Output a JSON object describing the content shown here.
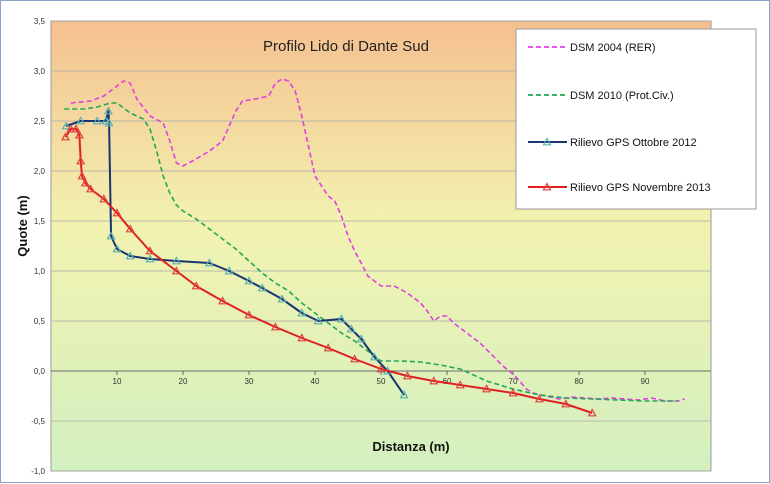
{
  "chart_data": {
    "type": "line",
    "title": "Profilo Lido di Dante Sud",
    "xlabel": "Distanza (m)",
    "ylabel": "Quote (m)",
    "xlim": [
      0,
      100
    ],
    "ylim": [
      -1.0,
      3.5
    ],
    "x_ticks": [
      10,
      20,
      30,
      40,
      50,
      60,
      70,
      80,
      90
    ],
    "y_ticks": [
      -1.0,
      -0.5,
      0.0,
      0.5,
      1.0,
      1.5,
      2.0,
      2.5,
      3.0,
      3.5
    ],
    "y_tick_labels": [
      "-1,0",
      "-0,5",
      "0,0",
      "0,5",
      "1,0",
      "1,5",
      "2,0",
      "2,5",
      "3,0",
      "3,5"
    ],
    "grid": true,
    "legend_position": "top-right",
    "background_bands": {
      "top": "#f5c08f",
      "middle": "#f2f2b0",
      "bottom": "#d3f0c0"
    },
    "series": [
      {
        "name": "DSM 2004 (RER)",
        "color": "#e040e0",
        "style": "dashed",
        "marker": "none",
        "points": [
          [
            3,
            2.68
          ],
          [
            6,
            2.7
          ],
          [
            8,
            2.75
          ],
          [
            10,
            2.85
          ],
          [
            11,
            2.9
          ],
          [
            12,
            2.88
          ],
          [
            13,
            2.72
          ],
          [
            15,
            2.55
          ],
          [
            17,
            2.48
          ],
          [
            18,
            2.3
          ],
          [
            19,
            2.08
          ],
          [
            20,
            2.05
          ],
          [
            22,
            2.12
          ],
          [
            24,
            2.2
          ],
          [
            26,
            2.3
          ],
          [
            27,
            2.45
          ],
          [
            28,
            2.6
          ],
          [
            29,
            2.7
          ],
          [
            31,
            2.72
          ],
          [
            33,
            2.75
          ],
          [
            34,
            2.88
          ],
          [
            35,
            2.92
          ],
          [
            36,
            2.9
          ],
          [
            37,
            2.8
          ],
          [
            38,
            2.55
          ],
          [
            39,
            2.25
          ],
          [
            40,
            1.95
          ],
          [
            41,
            1.85
          ],
          [
            42,
            1.75
          ],
          [
            43,
            1.7
          ],
          [
            44,
            1.55
          ],
          [
            45,
            1.35
          ],
          [
            46,
            1.2
          ],
          [
            47,
            1.08
          ],
          [
            48,
            0.95
          ],
          [
            49,
            0.9
          ],
          [
            50,
            0.85
          ],
          [
            52,
            0.85
          ],
          [
            54,
            0.78
          ],
          [
            56,
            0.68
          ],
          [
            57,
            0.6
          ],
          [
            58,
            0.5
          ],
          [
            59,
            0.55
          ],
          [
            60,
            0.55
          ],
          [
            61,
            0.48
          ],
          [
            63,
            0.38
          ],
          [
            65,
            0.28
          ],
          [
            67,
            0.15
          ],
          [
            68,
            0.08
          ],
          [
            69,
            0.02
          ],
          [
            70,
            -0.03
          ],
          [
            71,
            -0.1
          ],
          [
            72,
            -0.18
          ],
          [
            73,
            -0.22
          ],
          [
            75,
            -0.25
          ],
          [
            77,
            -0.28
          ],
          [
            79,
            -0.26
          ],
          [
            81,
            -0.27
          ],
          [
            83,
            -0.28
          ],
          [
            85,
            -0.27
          ],
          [
            87,
            -0.28
          ],
          [
            89,
            -0.29
          ],
          [
            91,
            -0.27
          ],
          [
            93,
            -0.3
          ],
          [
            95,
            -0.3
          ],
          [
            96,
            -0.28
          ]
        ]
      },
      {
        "name": "DSM 2010 (Prot.Civ.)",
        "color": "#22a855",
        "style": "dashed",
        "marker": "none",
        "points": [
          [
            2,
            2.62
          ],
          [
            5,
            2.62
          ],
          [
            7,
            2.64
          ],
          [
            8,
            2.66
          ],
          [
            9,
            2.68
          ],
          [
            10,
            2.68
          ],
          [
            11,
            2.63
          ],
          [
            12,
            2.58
          ],
          [
            13,
            2.55
          ],
          [
            14,
            2.52
          ],
          [
            15,
            2.42
          ],
          [
            16,
            2.2
          ],
          [
            17,
            1.95
          ],
          [
            18,
            1.78
          ],
          [
            19,
            1.66
          ],
          [
            20,
            1.6
          ],
          [
            22,
            1.52
          ],
          [
            24,
            1.42
          ],
          [
            26,
            1.32
          ],
          [
            28,
            1.22
          ],
          [
            30,
            1.1
          ],
          [
            32,
            0.98
          ],
          [
            34,
            0.88
          ],
          [
            36,
            0.8
          ],
          [
            38,
            0.68
          ],
          [
            40,
            0.58
          ],
          [
            42,
            0.48
          ],
          [
            44,
            0.38
          ],
          [
            46,
            0.3
          ],
          [
            48,
            0.2
          ],
          [
            50,
            0.1
          ],
          [
            53,
            0.1
          ],
          [
            56,
            0.09
          ],
          [
            59,
            0.06
          ],
          [
            62,
            0.02
          ],
          [
            66,
            -0.1
          ],
          [
            70,
            -0.18
          ],
          [
            74,
            -0.24
          ],
          [
            78,
            -0.27
          ],
          [
            82,
            -0.28
          ],
          [
            86,
            -0.29
          ],
          [
            90,
            -0.3
          ],
          [
            95,
            -0.3
          ]
        ]
      },
      {
        "name": "Rilievo GPS Ottobre 2012",
        "color": "#1a3470",
        "style": "solid",
        "marker": "triangle",
        "marker_color": "#5ab0b0",
        "points": [
          [
            2.3,
            2.45
          ],
          [
            4.5,
            2.5
          ],
          [
            7,
            2.5
          ],
          [
            8.3,
            2.5
          ],
          [
            8.7,
            2.6
          ],
          [
            8.8,
            2.48
          ],
          [
            9.1,
            1.35
          ],
          [
            10,
            1.22
          ],
          [
            12,
            1.15
          ],
          [
            15,
            1.12
          ],
          [
            19,
            1.1
          ],
          [
            24,
            1.08
          ],
          [
            27,
            1.0
          ],
          [
            30,
            0.9
          ],
          [
            32,
            0.83
          ],
          [
            35,
            0.72
          ],
          [
            38,
            0.58
          ],
          [
            40.5,
            0.5
          ],
          [
            44,
            0.52
          ],
          [
            45.5,
            0.42
          ],
          [
            47,
            0.32
          ],
          [
            49,
            0.14
          ],
          [
            51,
            0.0
          ],
          [
            53.5,
            -0.24
          ]
        ]
      },
      {
        "name": "Rilievo GPS Novembre 2013",
        "color": "#e02020",
        "style": "solid",
        "marker": "triangle",
        "marker_color": "#e04040",
        "points": [
          [
            2.2,
            2.34
          ],
          [
            3,
            2.42
          ],
          [
            3.8,
            2.42
          ],
          [
            4.3,
            2.36
          ],
          [
            4.5,
            2.1
          ],
          [
            4.7,
            1.95
          ],
          [
            5.2,
            1.88
          ],
          [
            6,
            1.82
          ],
          [
            8,
            1.72
          ],
          [
            10,
            1.58
          ],
          [
            12,
            1.42
          ],
          [
            15,
            1.2
          ],
          [
            19,
            1.0
          ],
          [
            22,
            0.85
          ],
          [
            26,
            0.7
          ],
          [
            30,
            0.56
          ],
          [
            34,
            0.44
          ],
          [
            38,
            0.33
          ],
          [
            42,
            0.23
          ],
          [
            46,
            0.12
          ],
          [
            50,
            0.02
          ],
          [
            54,
            -0.05
          ],
          [
            58,
            -0.1
          ],
          [
            62,
            -0.14
          ],
          [
            66,
            -0.18
          ],
          [
            70,
            -0.22
          ],
          [
            74,
            -0.28
          ],
          [
            78,
            -0.33
          ],
          [
            82,
            -0.42
          ]
        ]
      }
    ]
  }
}
